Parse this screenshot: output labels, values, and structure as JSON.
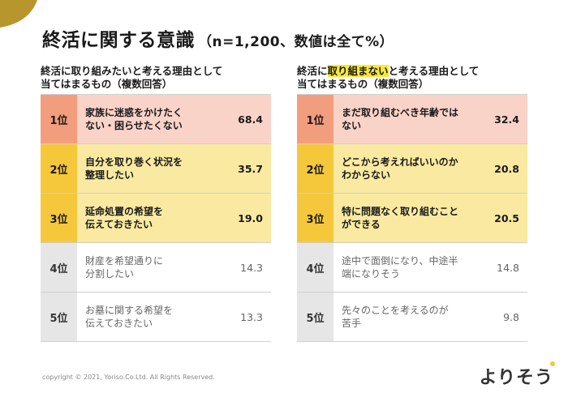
{
  "title": "終活に関する意識",
  "subtitle": "（n=1,200、数値は全て%）",
  "chart_data": [
    {
      "type": "table",
      "heading_line1": "終活に取り組みたいと考える理由として",
      "heading_line2": "当てはまるもの（複数回答）",
      "rows": [
        {
          "rank": "1位",
          "label": "家族に迷惑をかけたく\nない・困らせたくない",
          "value": "68.4"
        },
        {
          "rank": "2位",
          "label": "自分を取り巻く状況を\n整理したい",
          "value": "35.7"
        },
        {
          "rank": "3位",
          "label": "延命処置の希望を\n伝えておきたい",
          "value": "19.0"
        },
        {
          "rank": "4位",
          "label": "財産を希望通りに\n分割したい",
          "value": "14.3"
        },
        {
          "rank": "5位",
          "label": "お墓に関する希望を\n伝えておきたい",
          "value": "13.3"
        }
      ]
    },
    {
      "type": "table",
      "heading_pre": "終活に",
      "heading_highlight": "取り組まない",
      "heading_post": "と考える理由として",
      "heading_line2": "当てはまるもの（複数回答）",
      "rows": [
        {
          "rank": "1位",
          "label": "まだ取り組むべき年齢では\nない",
          "value": "32.4"
        },
        {
          "rank": "2位",
          "label": "どこから考えればいいのか\nわからない",
          "value": "20.8"
        },
        {
          "rank": "3位",
          "label": "特に問題なく取り組むこと\nができる",
          "value": "20.5"
        },
        {
          "rank": "4位",
          "label": "途中で面倒になり、中途半\n端になりそう",
          "value": "14.8"
        },
        {
          "rank": "5位",
          "label": "先々のことを考えるのが\n苦手",
          "value": "9.8"
        }
      ]
    }
  ],
  "footer": {
    "copyright": "copyright © 2021, Yoriso.Co.Ltd. All Rights Reserved.",
    "logo": "よりそう"
  },
  "colors": {
    "corner": "#b8962e",
    "rank1": "#f29d7e",
    "rank1_bg": "#fad3c8",
    "rank23": "#f5c83c",
    "rank23_bg": "#faeaa1",
    "highlight": "#f7e93a"
  }
}
